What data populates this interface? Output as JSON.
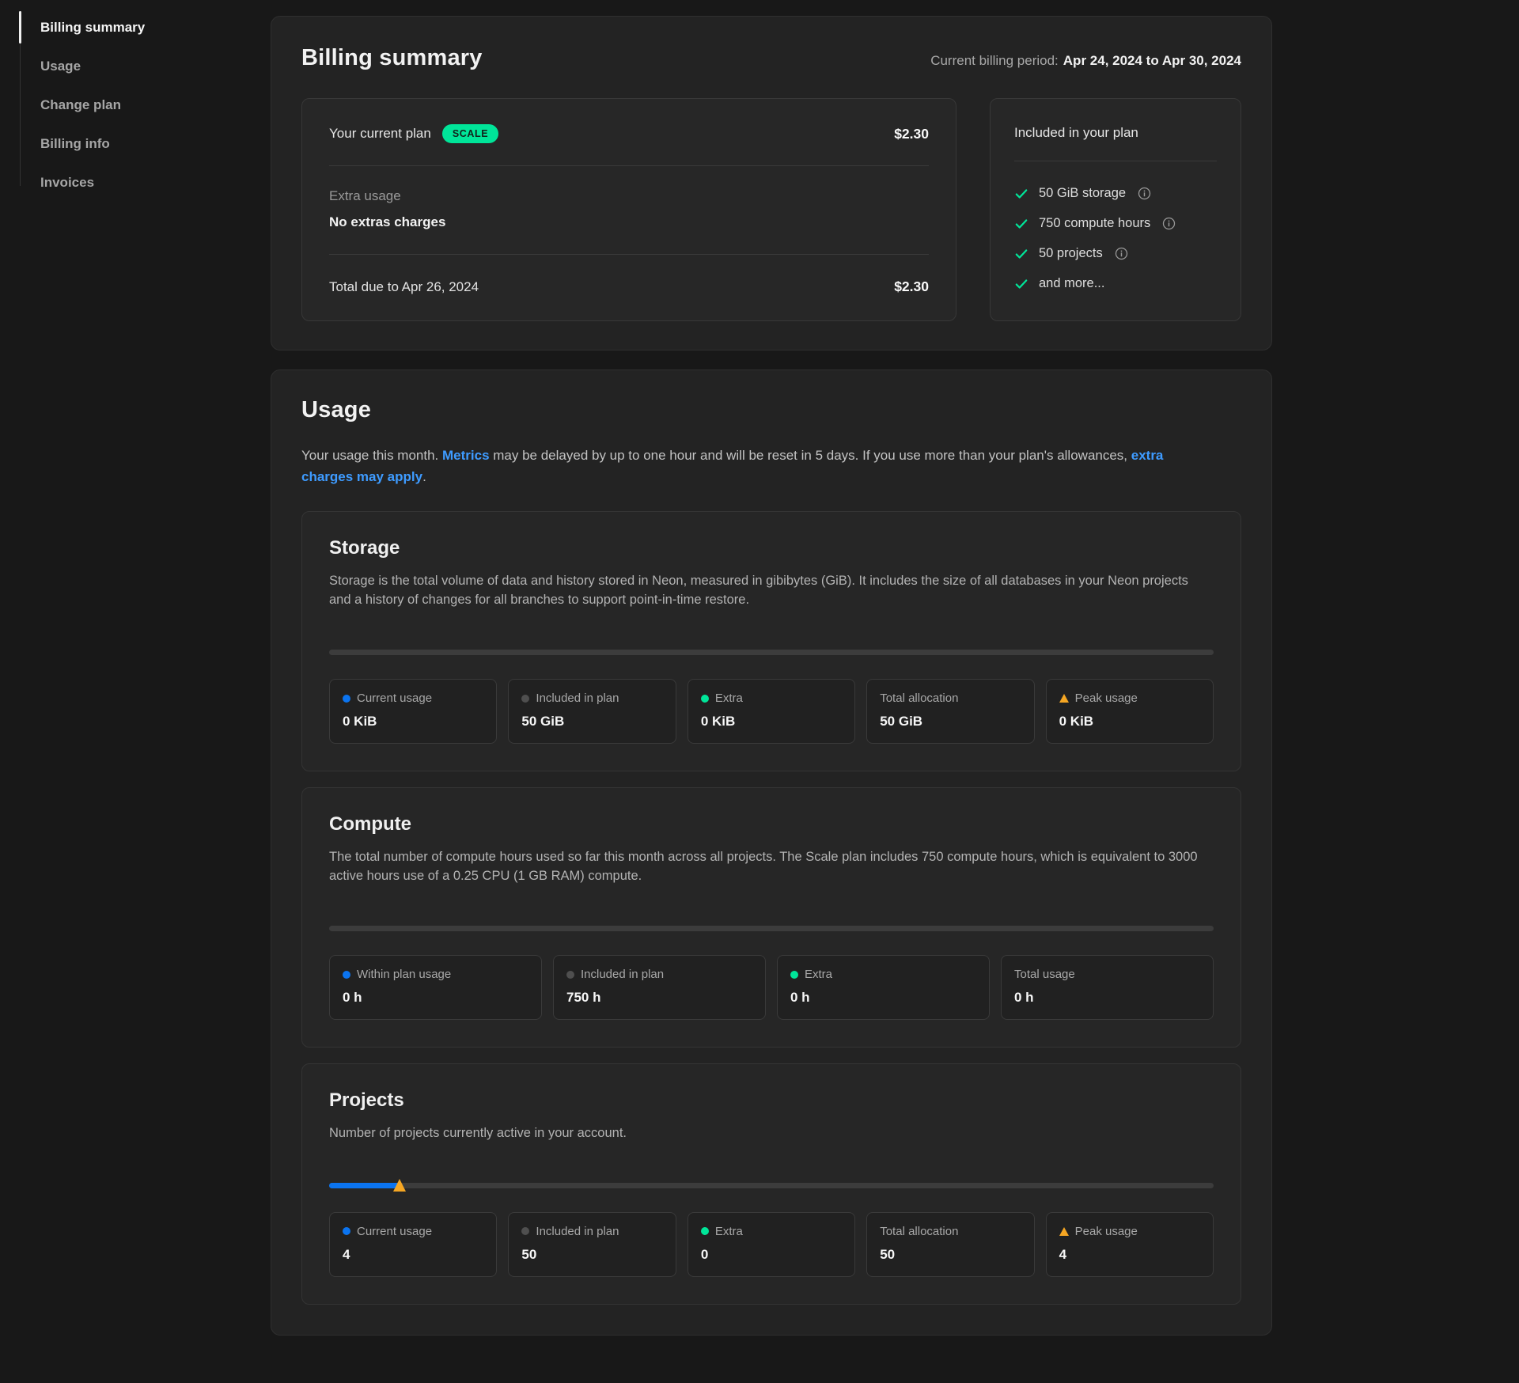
{
  "sidebar": {
    "items": [
      {
        "label": "Billing summary",
        "active": true
      },
      {
        "label": "Usage",
        "active": false
      },
      {
        "label": "Change plan",
        "active": false
      },
      {
        "label": "Billing info",
        "active": false
      },
      {
        "label": "Invoices",
        "active": false
      }
    ]
  },
  "billing_summary": {
    "title": "Billing summary",
    "period_label": "Current billing period:",
    "period_value": "Apr 24, 2024 to Apr 30, 2024",
    "plan": {
      "label": "Your current plan",
      "badge": "SCALE",
      "amount": "$2.30",
      "extra_label": "Extra usage",
      "extra_value": "No extras charges",
      "total_label": "Total due to Apr 26, 2024",
      "total_amount": "$2.30"
    },
    "included": {
      "title": "Included in your plan",
      "items": [
        {
          "label": "50 GiB storage",
          "info": true
        },
        {
          "label": "750 compute hours",
          "info": true
        },
        {
          "label": "50 projects",
          "info": true
        },
        {
          "label": "and more...",
          "info": false
        }
      ]
    }
  },
  "usage": {
    "title": "Usage",
    "intro": {
      "part1": "Your usage this month. ",
      "link1": "Metrics",
      "part2": " may be delayed by up to one hour and will be reset in 5 days. If you use more than your plan's allowances, ",
      "link2": "extra charges may apply",
      "part3": "."
    },
    "sections": [
      {
        "title": "Storage",
        "description": "Storage is the total volume of data and history stored in Neon, measured in gibibytes (GiB). It includes the size of all databases in your Neon projects and a history of changes for all branches to support point-in-time restore.",
        "progress": {
          "fill_percent": 0
        },
        "stats": [
          {
            "indicator": "dot-blue",
            "label": "Current usage",
            "value": "0 KiB"
          },
          {
            "indicator": "dot-gray",
            "label": "Included in plan",
            "value": "50 GiB"
          },
          {
            "indicator": "dot-green",
            "label": "Extra",
            "value": "0 KiB"
          },
          {
            "indicator": "none",
            "label": "Total allocation",
            "value": "50 GiB"
          },
          {
            "indicator": "triangle-orange",
            "label": "Peak usage",
            "value": "0 KiB"
          }
        ]
      },
      {
        "title": "Compute",
        "description": "The total number of compute hours used so far this month across all projects. The Scale plan includes 750 compute hours, which is equivalent to 3000 active hours use of a 0.25 CPU (1 GB RAM) compute.",
        "progress": {
          "fill_percent": 0
        },
        "stats": [
          {
            "indicator": "dot-blue",
            "label": "Within plan usage",
            "value": "0 h"
          },
          {
            "indicator": "dot-gray",
            "label": "Included in plan",
            "value": "750 h"
          },
          {
            "indicator": "dot-green",
            "label": "Extra",
            "value": "0 h"
          },
          {
            "indicator": "none",
            "label": "Total usage",
            "value": "0 h"
          }
        ]
      },
      {
        "title": "Projects",
        "description": "Number of projects currently active in your account.",
        "progress": {
          "fill_percent": 8,
          "marker_percent": 8
        },
        "stats": [
          {
            "indicator": "dot-blue",
            "label": "Current usage",
            "value": "4"
          },
          {
            "indicator": "dot-gray",
            "label": "Included in plan",
            "value": "50"
          },
          {
            "indicator": "dot-green",
            "label": "Extra",
            "value": "0"
          },
          {
            "indicator": "none",
            "label": "Total allocation",
            "value": "50"
          },
          {
            "indicator": "triangle-orange",
            "label": "Peak usage",
            "value": "4"
          }
        ]
      }
    ]
  },
  "colors": {
    "accent_green": "#00e599",
    "link_blue": "#3e9bff",
    "usage_blue": "#0b74f0",
    "peak_orange": "#f5a623",
    "included_gray": "#4f4f4f",
    "card_background": "#232323",
    "page_background": "#181818"
  }
}
